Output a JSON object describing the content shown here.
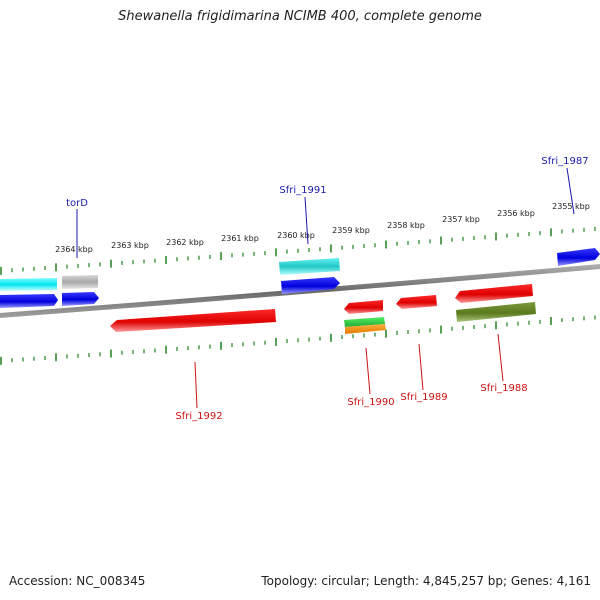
{
  "title": "Shewanella frigidimarina NCIMB 400, complete genome",
  "footer": {
    "accession": "Accession: NC_008345",
    "summary": "Topology: circular; Length: 4,845,257 bp; Genes: 4,161"
  },
  "scale_labels": [
    "2364 kbp",
    "2363 kbp",
    "2362 kbp",
    "2361 kbp",
    "2360 kbp",
    "2359 kbp",
    "2358 kbp",
    "2357 kbp",
    "2356 kbp",
    "2355 kbp"
  ],
  "gene_labels": {
    "forward": [
      "torD",
      "Sfri_1991",
      "Sfri_1987"
    ],
    "reverse": [
      "Sfri_1992",
      "Sfri_1990",
      "Sfri_1989",
      "Sfri_1988"
    ]
  },
  "colors": {
    "forward_label": "#1a1aaa",
    "reverse_label": "#cc1111",
    "ticks": "#2e8b2e",
    "backbone": "#808080"
  }
}
